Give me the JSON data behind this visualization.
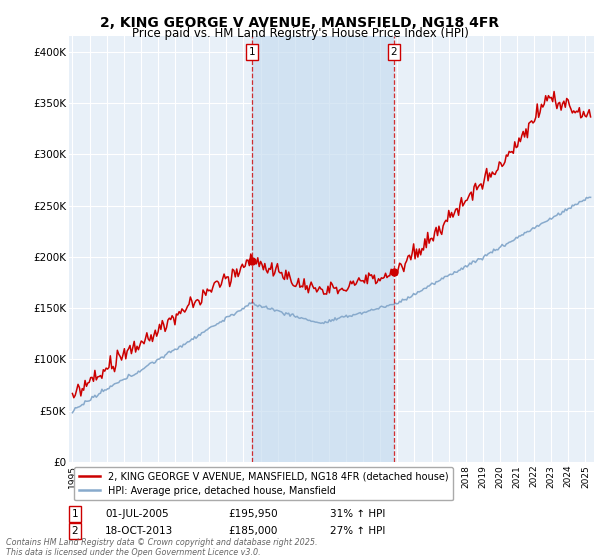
{
  "title_line1": "2, KING GEORGE V AVENUE, MANSFIELD, NG18 4FR",
  "title_line2": "Price paid vs. HM Land Registry's House Price Index (HPI)",
  "title_fontsize": 10,
  "subtitle_fontsize": 8.5,
  "ylabel_ticks": [
    "£0",
    "£50K",
    "£100K",
    "£150K",
    "£200K",
    "£250K",
    "£300K",
    "£350K",
    "£400K"
  ],
  "ytick_values": [
    0,
    50000,
    100000,
    150000,
    200000,
    250000,
    300000,
    350000,
    400000
  ],
  "ylim": [
    0,
    415000
  ],
  "xlim_start": 1994.8,
  "xlim_end": 2025.5,
  "xtick_years": [
    1995,
    1996,
    1997,
    1998,
    1999,
    2000,
    2001,
    2002,
    2003,
    2004,
    2005,
    2006,
    2007,
    2008,
    2009,
    2010,
    2011,
    2012,
    2013,
    2014,
    2015,
    2016,
    2017,
    2018,
    2019,
    2020,
    2021,
    2022,
    2023,
    2024,
    2025
  ],
  "line1_color": "#cc0000",
  "line2_color": "#88aacc",
  "line1_label": "2, KING GEORGE V AVENUE, MANSFIELD, NG18 4FR (detached house)",
  "line2_label": "HPI: Average price, detached house, Mansfield",
  "marker1_date": 2005.5,
  "marker1_price": 195950,
  "marker1_label": "1",
  "marker2_date": 2013.8,
  "marker2_price": 185000,
  "marker2_label": "2",
  "vline1_x": 2005.5,
  "vline2_x": 2013.8,
  "annotation1_date": "01-JUL-2005",
  "annotation1_price": "£195,950",
  "annotation1_hpi": "31% ↑ HPI",
  "annotation2_date": "18-OCT-2013",
  "annotation2_price": "£185,000",
  "annotation2_hpi": "27% ↑ HPI",
  "footnote": "Contains HM Land Registry data © Crown copyright and database right 2025.\nThis data is licensed under the Open Government Licence v3.0.",
  "bg_color": "#ffffff",
  "plot_bg_color": "#dce8f5",
  "plot_bg_color2": "#e8f0f8",
  "shade_color": "#c8ddf0",
  "grid_color": "#ffffff",
  "vline_color": "#cc0000",
  "vline_style": "--"
}
